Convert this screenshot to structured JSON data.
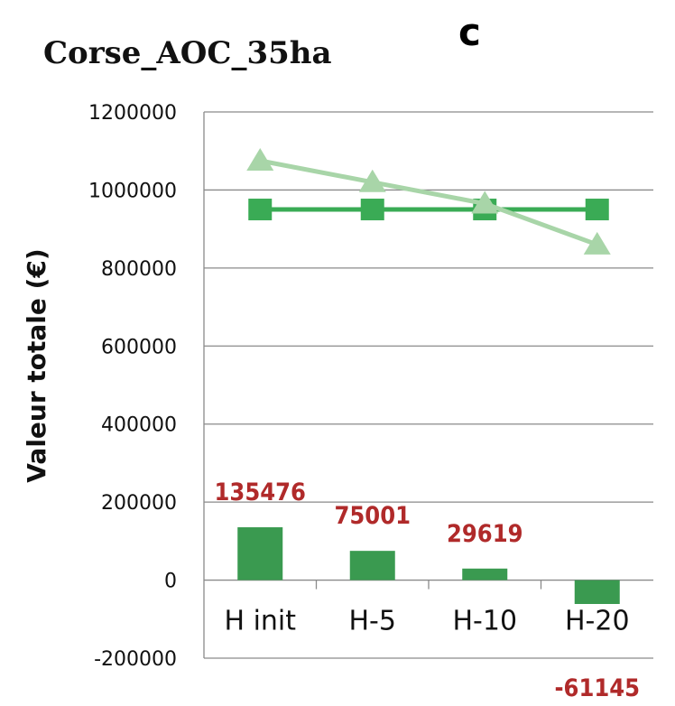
{
  "chart_data": {
    "type": "bar",
    "title": "Corse_AOC_35ha",
    "panel_label": "c",
    "ylabel": "Valeur totale (€)",
    "xlabel": "",
    "ylim": [
      -200000,
      1200000
    ],
    "yticks": [
      -200000,
      0,
      200000,
      400000,
      600000,
      800000,
      1000000,
      1200000
    ],
    "ytick_labels": [
      "-200000",
      "0",
      "200000",
      "400000",
      "600000",
      "800000",
      "1000000",
      "1200000"
    ],
    "categories": [
      "H init",
      "H-5",
      "H-10",
      "H-20"
    ],
    "grid": true,
    "bars": {
      "values": [
        135476,
        75001,
        29619,
        -61145
      ],
      "data_labels": [
        "135476",
        "75001",
        "29619",
        "-61145"
      ],
      "color": "#3a9a50"
    },
    "lines": [
      {
        "marker": "square",
        "values": [
          950000,
          950000,
          950000,
          950000
        ],
        "color": "#3aab55"
      },
      {
        "marker": "triangle",
        "values": [
          1075000,
          1020000,
          965000,
          860000
        ],
        "color": "#a8d5a8"
      }
    ],
    "colors": {
      "label": "#b02a2a",
      "grid": "#8a8a8a"
    }
  }
}
